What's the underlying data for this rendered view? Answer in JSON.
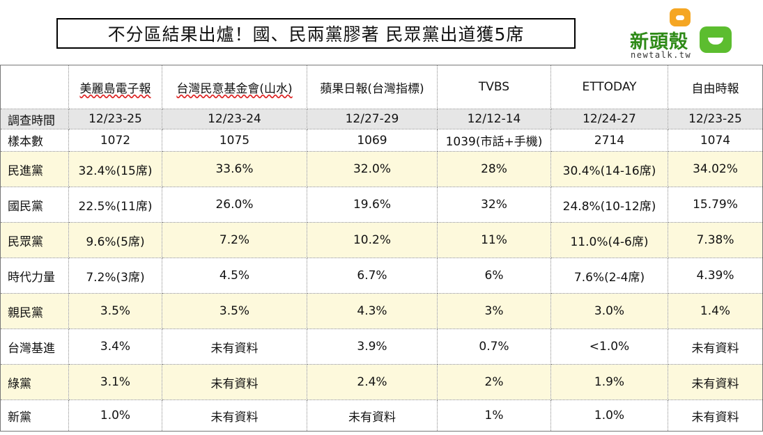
{
  "title": "不分區結果出爐！國、民兩黨膠著 民眾黨出道獲5席",
  "logo": {
    "name_cn": "新頭殼",
    "name_en": "newtalk.tw"
  },
  "colors": {
    "shaded_row": "#fdf9dc",
    "date_row": "#e6e6e6",
    "logo_green": "#5cbd2f",
    "logo_orange": "#f5a623"
  },
  "table": {
    "sources": [
      "",
      "美麗島電子報",
      "台灣民意基金會(山水)",
      "蘋果日報(台灣指標)",
      "TVBS",
      "ETTODAY",
      "自由時報"
    ],
    "rows": [
      {
        "label": "調查時間",
        "values": [
          "12/23-25",
          "12/23-24",
          "12/27-29",
          "12/12-14",
          "12/24-27",
          "12/23-25"
        ]
      },
      {
        "label": "樣本數",
        "values": [
          "1072",
          "1075",
          "1069",
          "1039(市話+手機)",
          "2714",
          "1074"
        ]
      },
      {
        "label": "民進黨",
        "values": [
          "32.4%(15席)",
          "33.6%",
          "32.0%",
          "28%",
          "30.4%(14-16席)",
          "34.02%"
        ]
      },
      {
        "label": "國民黨",
        "values": [
          "22.5%(11席)",
          "26.0%",
          "19.6%",
          "32%",
          "24.8%(10-12席)",
          "15.79%"
        ]
      },
      {
        "label": "民眾黨",
        "values": [
          "9.6%(5席)",
          "7.2%",
          "10.2%",
          "11%",
          "11.0%(4-6席)",
          "7.38%"
        ]
      },
      {
        "label": "時代力量",
        "values": [
          "7.2%(3席)",
          "4.5%",
          "6.7%",
          "6%",
          "7.6%(2-4席)",
          "4.39%"
        ]
      },
      {
        "label": "親民黨",
        "values": [
          "3.5%",
          "3.5%",
          "4.3%",
          "3%",
          "3.0%",
          "1.4%"
        ]
      },
      {
        "label": "台灣基進",
        "values": [
          "3.4%",
          "未有資料",
          "3.9%",
          "0.7%",
          "<1.0%",
          "未有資料"
        ]
      },
      {
        "label": "綠黨",
        "values": [
          "3.1%",
          "未有資料",
          "2.4%",
          "2%",
          "1.9%",
          "未有資料"
        ]
      },
      {
        "label": "新黨",
        "values": [
          "1.0%",
          "未有資料",
          "未有資料",
          "1%",
          "1.0%",
          "未有資料"
        ]
      }
    ]
  }
}
